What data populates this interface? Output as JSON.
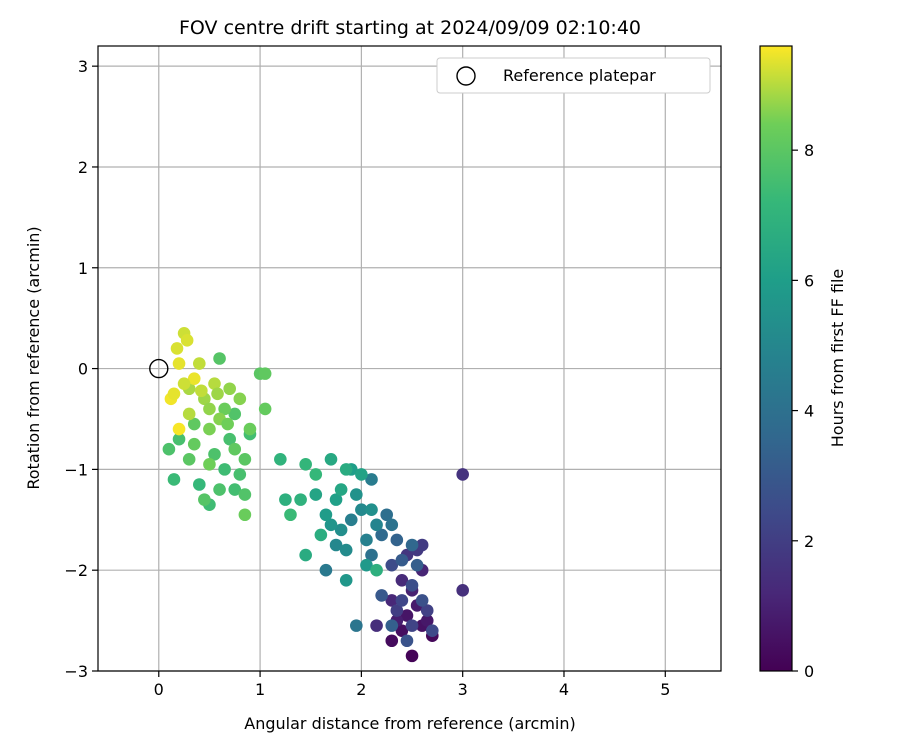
{
  "chart_data": {
    "type": "scatter",
    "title": "FOV centre drift starting at 2024/09/09 02:10:40",
    "xlabel": "Angular distance from reference (arcmin)",
    "ylabel": "Rotation from reference (arcmin)",
    "xlim": [
      -0.6,
      5.55
    ],
    "ylim": [
      -3,
      3.2
    ],
    "xticks": [
      0,
      1,
      2,
      3,
      4,
      5
    ],
    "xtick_labels": [
      "0",
      "1",
      "2",
      "3",
      "4",
      "5"
    ],
    "yticks": [
      -3,
      -2,
      -1,
      0,
      1,
      2,
      3
    ],
    "ytick_labels": [
      "−3",
      "−2",
      "−1",
      "0",
      "1",
      "2",
      "3"
    ],
    "grid": true,
    "legend": {
      "position": "top-right",
      "entries": [
        {
          "label": "Reference platepar",
          "marker": "open-circle"
        }
      ]
    },
    "reference_point": {
      "x": 0,
      "y": 0
    },
    "colorbar": {
      "label": "Hours from first FF file",
      "colormap": "viridis",
      "range": [
        0,
        9.6
      ],
      "ticks": [
        0,
        2,
        4,
        6,
        8
      ],
      "tick_labels": [
        "0",
        "2",
        "4",
        "6",
        "8"
      ]
    },
    "series": [
      {
        "color_by": "hours",
        "points": [
          [
            2.5,
            -2.85,
            0.1
          ],
          [
            2.7,
            -2.65,
            0.2
          ],
          [
            2.3,
            -2.7,
            0.3
          ],
          [
            2.4,
            -2.6,
            0.4
          ],
          [
            2.6,
            -2.55,
            0.5
          ],
          [
            2.45,
            -2.45,
            0.6
          ],
          [
            2.65,
            -2.5,
            0.7
          ],
          [
            2.55,
            -2.35,
            0.8
          ],
          [
            2.35,
            -2.5,
            0.9
          ],
          [
            2.5,
            -2.2,
            1.0
          ],
          [
            2.6,
            -2.0,
            1.1
          ],
          [
            2.3,
            -2.3,
            1.2
          ],
          [
            2.4,
            -2.1,
            1.3
          ],
          [
            2.15,
            -2.55,
            1.4
          ],
          [
            3.0,
            -2.2,
            1.5
          ],
          [
            3.0,
            -1.05,
            1.6
          ],
          [
            2.45,
            -1.85,
            1.7
          ],
          [
            2.55,
            -1.8,
            1.8
          ],
          [
            2.6,
            -1.75,
            1.9
          ],
          [
            2.35,
            -2.4,
            2.0
          ],
          [
            2.65,
            -2.4,
            2.1
          ],
          [
            2.5,
            -2.55,
            2.2
          ],
          [
            2.4,
            -2.3,
            2.3
          ],
          [
            2.7,
            -2.6,
            2.4
          ],
          [
            2.3,
            -1.95,
            2.5
          ],
          [
            2.5,
            -2.15,
            2.6
          ],
          [
            2.6,
            -2.3,
            2.7
          ],
          [
            2.45,
            -2.7,
            2.8
          ],
          [
            2.2,
            -2.25,
            3.0
          ],
          [
            2.4,
            -1.9,
            3.1
          ],
          [
            2.55,
            -1.95,
            3.2
          ],
          [
            2.3,
            -2.55,
            3.3
          ],
          [
            2.35,
            -1.7,
            3.4
          ],
          [
            2.5,
            -1.75,
            3.6
          ],
          [
            2.2,
            -1.65,
            3.7
          ],
          [
            2.25,
            -1.45,
            3.9
          ],
          [
            2.1,
            -1.85,
            4.0
          ],
          [
            2.3,
            -1.55,
            4.1
          ],
          [
            1.95,
            -2.55,
            4.2
          ],
          [
            1.65,
            -2.0,
            4.4
          ],
          [
            2.1,
            -1.1,
            4.5
          ],
          [
            1.9,
            -1.5,
            4.6
          ],
          [
            2.05,
            -1.7,
            4.7
          ],
          [
            2.15,
            -1.55,
            4.9
          ],
          [
            1.75,
            -1.75,
            5.0
          ],
          [
            2.0,
            -1.4,
            5.1
          ],
          [
            1.85,
            -1.8,
            5.2
          ],
          [
            1.8,
            -1.6,
            5.3
          ],
          [
            2.1,
            -1.4,
            5.4
          ],
          [
            1.95,
            -1.25,
            5.5
          ],
          [
            1.7,
            -1.55,
            5.6
          ],
          [
            1.85,
            -2.1,
            5.7
          ],
          [
            2.05,
            -1.95,
            5.8
          ],
          [
            1.65,
            -1.45,
            5.9
          ],
          [
            1.9,
            -1.0,
            6.0
          ],
          [
            1.75,
            -1.3,
            6.1
          ],
          [
            2.0,
            -1.05,
            6.2
          ],
          [
            1.55,
            -1.25,
            6.3
          ],
          [
            1.8,
            -1.2,
            6.4
          ],
          [
            1.7,
            -0.9,
            6.5
          ],
          [
            1.45,
            -1.85,
            6.6
          ],
          [
            1.6,
            -1.65,
            6.7
          ],
          [
            1.25,
            -1.3,
            6.8
          ],
          [
            1.4,
            -1.3,
            6.9
          ],
          [
            1.2,
            -0.9,
            7.0
          ],
          [
            1.45,
            -0.95,
            7.1
          ],
          [
            1.55,
            -1.05,
            7.2
          ],
          [
            1.3,
            -1.45,
            7.3
          ],
          [
            2.15,
            -2.0,
            6.8
          ],
          [
            1.85,
            -1.0,
            6.6
          ],
          [
            0.5,
            -1.35,
            7.4
          ],
          [
            0.75,
            -1.2,
            7.5
          ],
          [
            0.8,
            -1.05,
            7.6
          ],
          [
            0.6,
            -1.2,
            7.7
          ],
          [
            0.4,
            -1.15,
            7.2
          ],
          [
            0.15,
            -1.1,
            7.3
          ],
          [
            0.65,
            -1.0,
            7.4
          ],
          [
            0.9,
            -0.65,
            7.5
          ],
          [
            0.7,
            -0.7,
            7.6
          ],
          [
            0.55,
            -0.85,
            7.7
          ],
          [
            0.85,
            -1.25,
            7.8
          ],
          [
            0.45,
            -1.3,
            7.9
          ],
          [
            0.75,
            -0.45,
            7.8
          ],
          [
            0.6,
            0.1,
            7.9
          ],
          [
            1.0,
            -0.05,
            8.0
          ],
          [
            1.05,
            -0.05,
            8.1
          ],
          [
            1.05,
            -0.4,
            8.2
          ],
          [
            0.85,
            -1.45,
            8.3
          ],
          [
            0.5,
            -0.95,
            8.4
          ],
          [
            0.3,
            -0.9,
            8.0
          ],
          [
            0.2,
            -0.7,
            7.6
          ],
          [
            0.1,
            -0.8,
            7.7
          ],
          [
            0.35,
            -0.55,
            8.1
          ],
          [
            0.65,
            -0.4,
            8.3
          ],
          [
            0.5,
            -0.6,
            8.5
          ],
          [
            0.8,
            -0.3,
            8.6
          ],
          [
            0.7,
            -0.2,
            8.7
          ],
          [
            0.45,
            -0.3,
            8.8
          ],
          [
            0.3,
            -0.2,
            8.9
          ],
          [
            0.55,
            -0.15,
            9.0
          ],
          [
            0.4,
            0.05,
            9.1
          ],
          [
            0.25,
            0.35,
            9.2
          ],
          [
            0.28,
            0.28,
            9.3
          ],
          [
            0.18,
            0.2,
            9.3
          ],
          [
            0.2,
            0.05,
            9.4
          ],
          [
            0.35,
            -0.1,
            9.45
          ],
          [
            0.12,
            -0.3,
            9.5
          ],
          [
            0.2,
            -0.6,
            9.55
          ],
          [
            0.3,
            -0.45,
            9.0
          ],
          [
            0.6,
            -0.5,
            8.6
          ],
          [
            0.9,
            -0.6,
            8.3
          ],
          [
            0.75,
            -0.8,
            8.1
          ],
          [
            0.35,
            -0.75,
            8.2
          ],
          [
            0.5,
            -0.4,
            8.7
          ],
          [
            0.25,
            -0.15,
            9.2
          ],
          [
            0.15,
            -0.25,
            9.4
          ],
          [
            0.42,
            -0.22,
            9.1
          ],
          [
            0.58,
            -0.25,
            8.8
          ],
          [
            0.68,
            -0.55,
            8.4
          ],
          [
            0.85,
            -0.9,
            8.0
          ]
        ]
      }
    ]
  }
}
